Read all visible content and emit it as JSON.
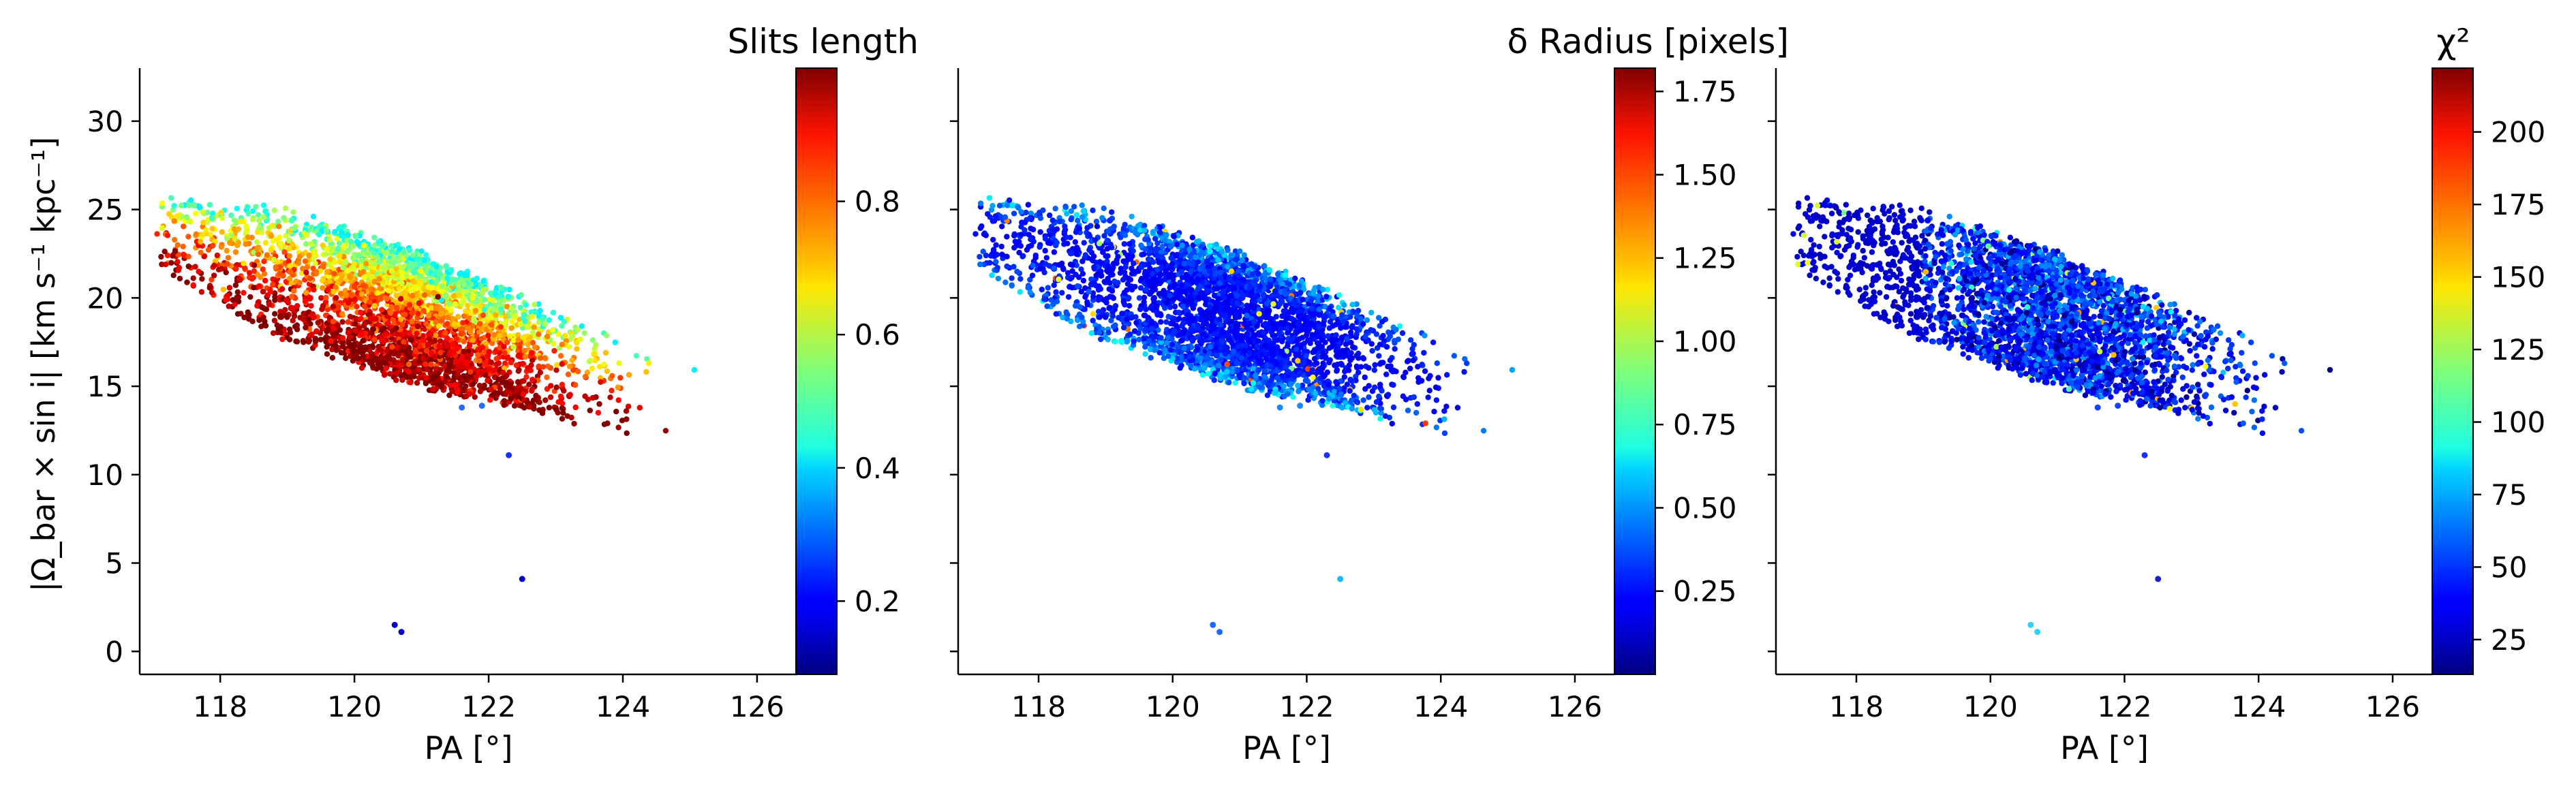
{
  "chart_data": [
    {
      "type": "scatter",
      "panel": "left",
      "xlabel": "PA [°]",
      "ylabel": "|Ω_bar × sin i|  [km s⁻¹ kpc⁻¹]",
      "xlim": [
        116.8,
        126.6
      ],
      "ylim": [
        -1.3,
        33
      ],
      "xticks": [
        118,
        120,
        122,
        124,
        126
      ],
      "yticks": [
        0,
        5,
        10,
        15,
        20,
        25,
        30
      ],
      "colorbar": {
        "title": "Slits length",
        "range": [
          0.09,
          1.0
        ],
        "ticks": [
          0.2,
          0.4,
          0.6,
          0.8
        ],
        "tick_labels": [
          "0.2",
          "0.4",
          "0.6",
          "0.8"
        ],
        "colormap": "jet"
      },
      "color_trend": "high-|Ω| edge of the band is yellow/green (short slits); low-|Ω| edge is red (long slits ~1.0)",
      "cloud": {
        "x_range": [
          117.0,
          125.7
        ],
        "trend": "|Ω| decreases roughly linearly with PA from ~23 at PA 117 to ~11 at PA 125"
      },
      "outliers": [
        {
          "x": 121.6,
          "y": 13.8
        },
        {
          "x": 121.9,
          "y": 13.9
        },
        {
          "x": 122.3,
          "y": 11.1
        },
        {
          "x": 122.5,
          "y": 4.1
        },
        {
          "x": 120.6,
          "y": 1.5
        },
        {
          "x": 120.7,
          "y": 1.1
        }
      ]
    },
    {
      "type": "scatter",
      "panel": "middle",
      "xlabel": "PA [°]",
      "xlim": [
        116.8,
        126.6
      ],
      "ylim": [
        -1.3,
        33
      ],
      "xticks": [
        118,
        120,
        122,
        124,
        126
      ],
      "yticks": [
        0,
        5,
        10,
        15,
        20,
        25,
        30
      ],
      "colorbar": {
        "title": "δ Radius [pixels]",
        "range": [
          0.0,
          1.82
        ],
        "ticks": [
          0.25,
          0.5,
          0.75,
          1.0,
          1.25,
          1.5,
          1.75
        ],
        "tick_labels": [
          "0.25",
          "0.50",
          "0.75",
          "1.00",
          "1.25",
          "1.50",
          "1.75"
        ],
        "colormap": "jet"
      },
      "color_trend": "mostly blue (δR ≈ 0.1–0.5), cyan/green at the upper and lower edges of the band",
      "cloud": {
        "x_range": [
          117.0,
          125.7
        ],
        "trend": "same points as left panel"
      },
      "outliers": [
        {
          "x": 121.6,
          "y": 13.8
        },
        {
          "x": 121.9,
          "y": 13.9
        },
        {
          "x": 122.3,
          "y": 11.1
        },
        {
          "x": 122.5,
          "y": 4.1
        },
        {
          "x": 120.6,
          "y": 1.5
        },
        {
          "x": 120.7,
          "y": 1.1
        }
      ]
    },
    {
      "type": "scatter",
      "panel": "right",
      "xlabel": "PA [°]",
      "xlim": [
        116.8,
        126.6
      ],
      "ylim": [
        -1.3,
        33
      ],
      "xticks": [
        118,
        120,
        122,
        124,
        126
      ],
      "yticks": [
        0,
        5,
        10,
        15,
        20,
        25,
        30
      ],
      "colorbar": {
        "title": "χ²",
        "range": [
          13,
          222
        ],
        "ticks": [
          25,
          50,
          75,
          100,
          125,
          150,
          175,
          200
        ],
        "tick_labels": [
          "25",
          "50",
          "75",
          "100",
          "125",
          "150",
          "175",
          "200"
        ],
        "colormap": "jet"
      },
      "color_trend": "mostly blue (χ² ≈ 20–60); darker navy on the left edge, a few cyan/green points in the upper part",
      "cloud": {
        "x_range": [
          117.0,
          125.7
        ],
        "trend": "same points as left panel"
      },
      "outliers": [
        {
          "x": 121.6,
          "y": 13.8
        },
        {
          "x": 121.9,
          "y": 13.9
        },
        {
          "x": 122.3,
          "y": 11.1
        },
        {
          "x": 122.5,
          "y": 4.1
        },
        {
          "x": 120.6,
          "y": 1.5
        },
        {
          "x": 120.7,
          "y": 1.1
        }
      ]
    }
  ]
}
